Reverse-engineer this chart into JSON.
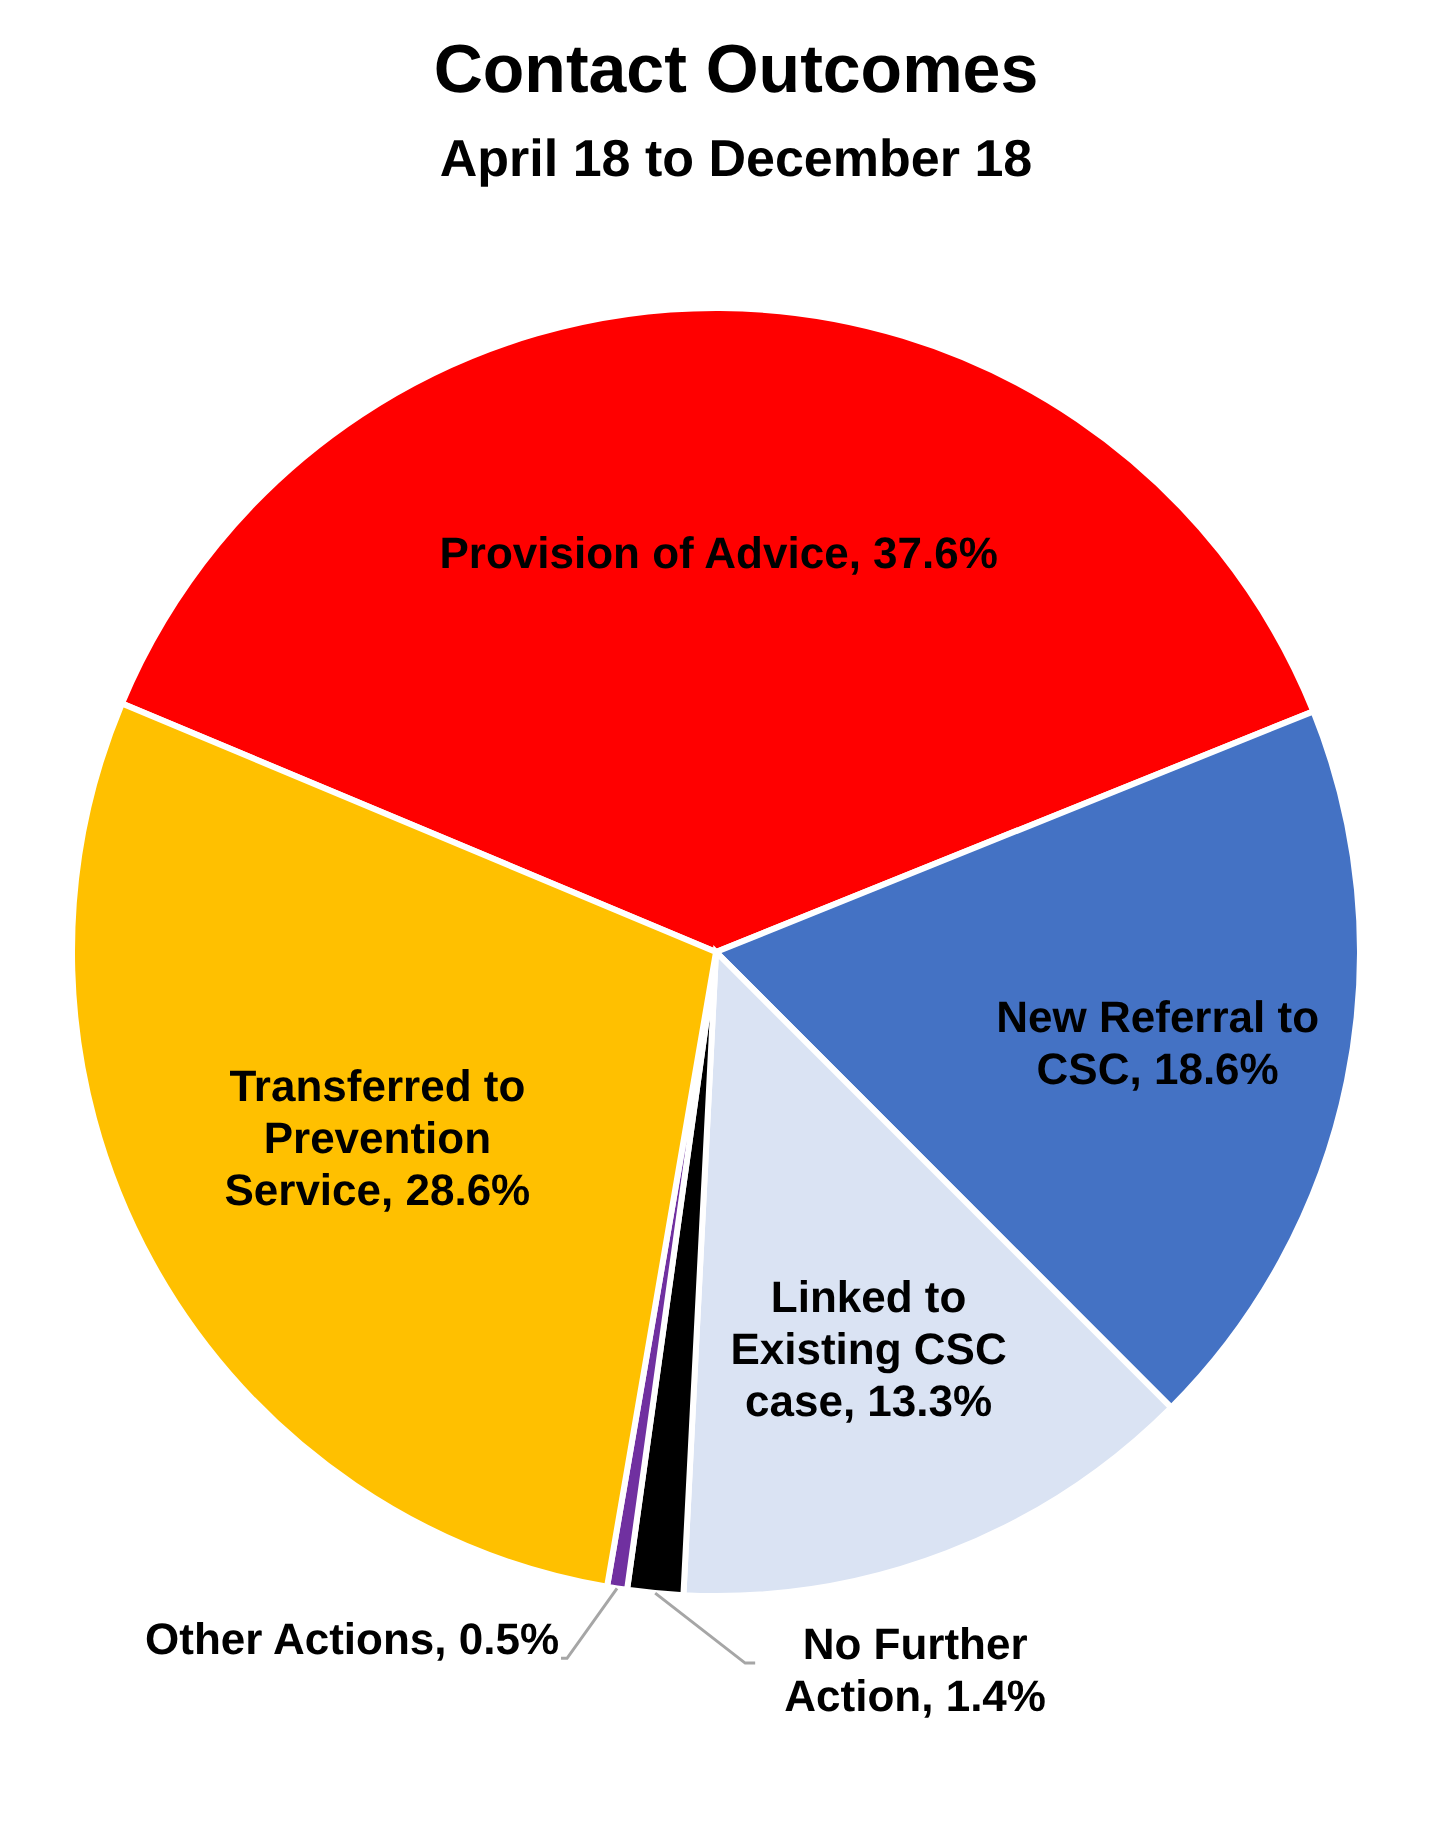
{
  "chart_data": {
    "type": "pie",
    "title": "Contact Outcomes",
    "subtitle": "April 18 to December 18",
    "categories": [
      "Provision of Advice",
      "New Referral to CSC",
      "Linked to Existing CSC case",
      "No Further Action",
      "Other Actions",
      "Transferred to Prevention Service"
    ],
    "values": [
      37.6,
      18.6,
      13.3,
      1.4,
      0.5,
      28.6
    ],
    "value_labels": [
      "37.6%",
      "18.6%",
      "13.3%",
      "1.4%",
      "0.5%",
      "28.6%"
    ],
    "colors": [
      "#ff0000",
      "#4472c4",
      "#dae3f3",
      "#000000",
      "#7030a0",
      "#ffc000"
    ]
  }
}
